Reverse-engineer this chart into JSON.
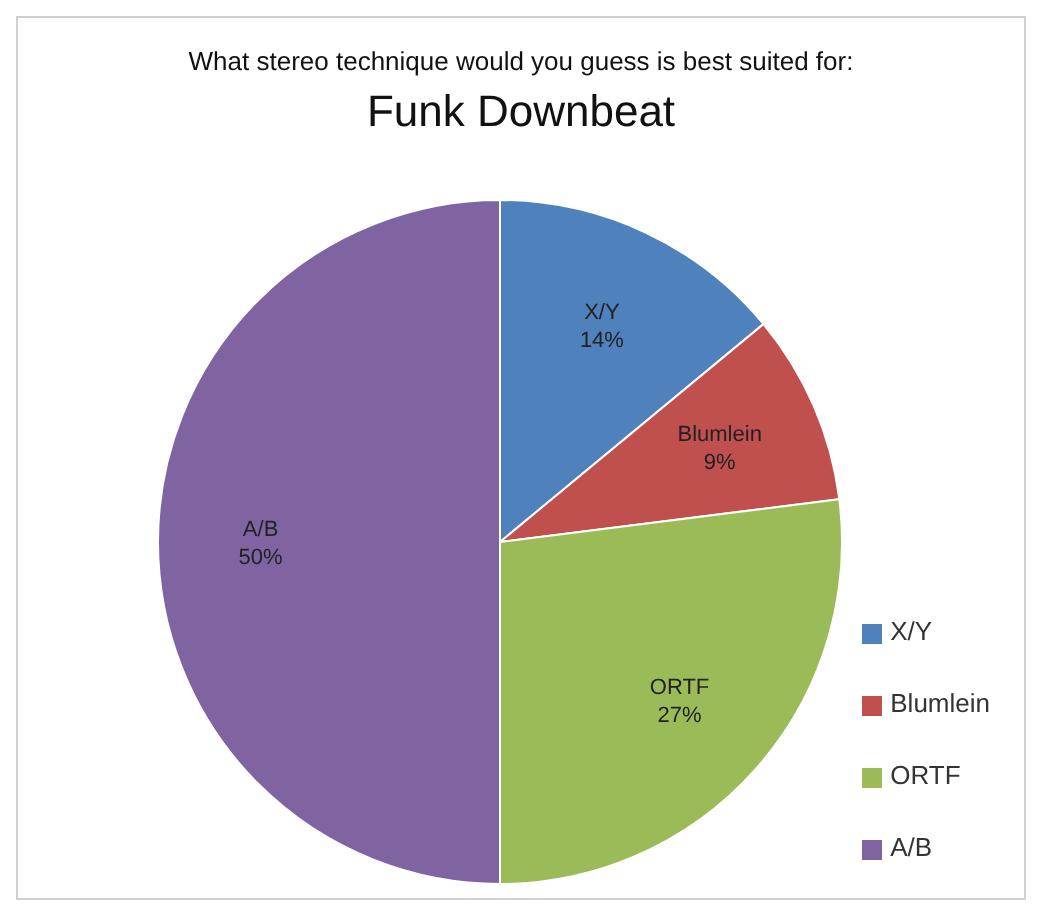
{
  "chart_data": {
    "type": "pie",
    "subtitle": "What stereo technique would you guess is best suited for:",
    "title": "Funk Downbeat",
    "categories": [
      "X/Y",
      "Blumlein",
      "ORTF",
      "A/B"
    ],
    "values": [
      14,
      9,
      27,
      50
    ],
    "value_labels": [
      "14%",
      "9%",
      "27%",
      "50%"
    ],
    "colors": [
      "#4f81bd",
      "#c0504d",
      "#9bbb59",
      "#8064a2"
    ],
    "legend": "bottom right"
  }
}
